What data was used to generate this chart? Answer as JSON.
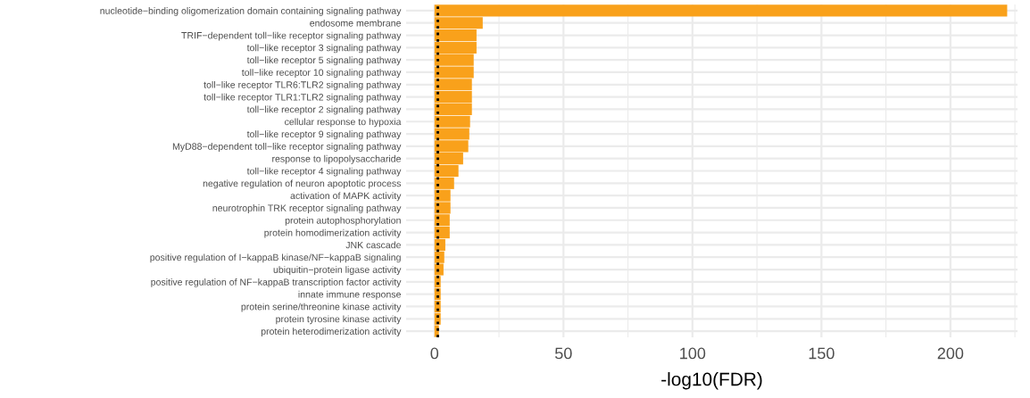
{
  "chart_data": {
    "type": "bar",
    "orientation": "horizontal",
    "xlabel": "-log10(FDR)",
    "categories": [
      "nucleotide−binding oligomerization domain containing signaling pathway",
      "endosome membrane",
      "TRIF−dependent toll−like receptor signaling pathway",
      "toll−like receptor 3 signaling pathway",
      "toll−like receptor 5 signaling pathway",
      "toll−like receptor 10 signaling pathway",
      "toll−like receptor TLR6:TLR2 signaling pathway",
      "toll−like receptor TLR1:TLR2 signaling pathway",
      "toll−like receptor 2 signaling pathway",
      "cellular response to hypoxia",
      "toll−like receptor 9 signaling pathway",
      "MyD88−dependent toll−like receptor signaling pathway",
      "response to lipopolysaccharide",
      "toll−like receptor 4 signaling pathway",
      "negative regulation of neuron apoptotic process",
      "activation of MAPK activity",
      "neurotrophin TRK receptor signaling pathway",
      "protein autophosphorylation",
      "protein homodimerization activity",
      "JNK cascade",
      "positive regulation of I−kappaB kinase/NF−kappaB signaling",
      "ubiquitin−protein ligase activity",
      "positive regulation of NF−kappaB transcription factor activity",
      "innate immune response",
      "protein serine/threonine kinase activity",
      "protein tyrosine kinase activity",
      "protein heterodimerization activity"
    ],
    "values": [
      222,
      18.7,
      16.3,
      16.3,
      15.2,
      15.2,
      14.5,
      14.5,
      14.5,
      13.8,
      13.5,
      13.1,
      11.1,
      9.3,
      7.6,
      6.2,
      6.2,
      5.9,
      5.9,
      4.2,
      3.8,
      3.5,
      2.4,
      2.4,
      2.4,
      2.4,
      1.7
    ],
    "color": "#f9a11b",
    "xlim": [
      -11,
      226
    ],
    "xticks": [
      0,
      {
        "value": 25,
        "label": null
      },
      50,
      {
        "value": 75,
        "label": null
      },
      100,
      {
        "value": 125,
        "label": null
      },
      150,
      {
        "value": 175,
        "label": null
      },
      200,
      {
        "value": 225,
        "label": null
      }
    ],
    "grid": true,
    "ref_lines": [
      {
        "axis": "x",
        "value": 1.3,
        "color": "#000000",
        "line_style": "dotted"
      }
    ]
  }
}
